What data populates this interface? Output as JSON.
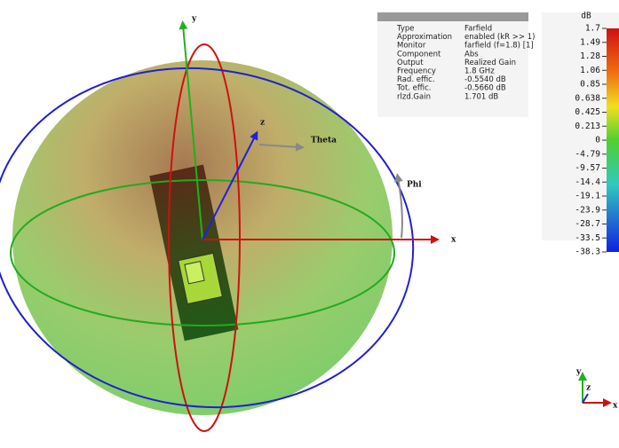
{
  "axes": {
    "x": "x",
    "y": "y",
    "z": "z",
    "theta": "Theta",
    "phi": "Phi"
  },
  "info": {
    "rows": [
      [
        "Type",
        "Farfield"
      ],
      [
        "Approximation",
        "enabled (kR >> 1)"
      ],
      [
        "Monitor",
        "farfield (f=1.8) [1]"
      ],
      [
        "Component",
        "Abs"
      ],
      [
        "Output",
        "Realized Gain"
      ],
      [
        "Frequency",
        "1.8 GHz"
      ],
      [
        "Rad. effic.",
        "-0.5540 dB"
      ],
      [
        "Tot. effic.",
        "-0.5660 dB"
      ],
      [
        "rlzd.Gain",
        "1.701 dB"
      ]
    ]
  },
  "colorbar": {
    "unit": "dB",
    "labels": [
      "1.7",
      "1.49",
      "1.28",
      "1.06",
      "0.85",
      "0.638",
      "0.425",
      "0.213",
      "0",
      "-4.79",
      "-9.57",
      "-14.4",
      "-19.1",
      "-23.9",
      "-28.7",
      "-33.5",
      "-38.3"
    ]
  },
  "triad": {
    "x": "x",
    "y": "y",
    "z": "z"
  }
}
